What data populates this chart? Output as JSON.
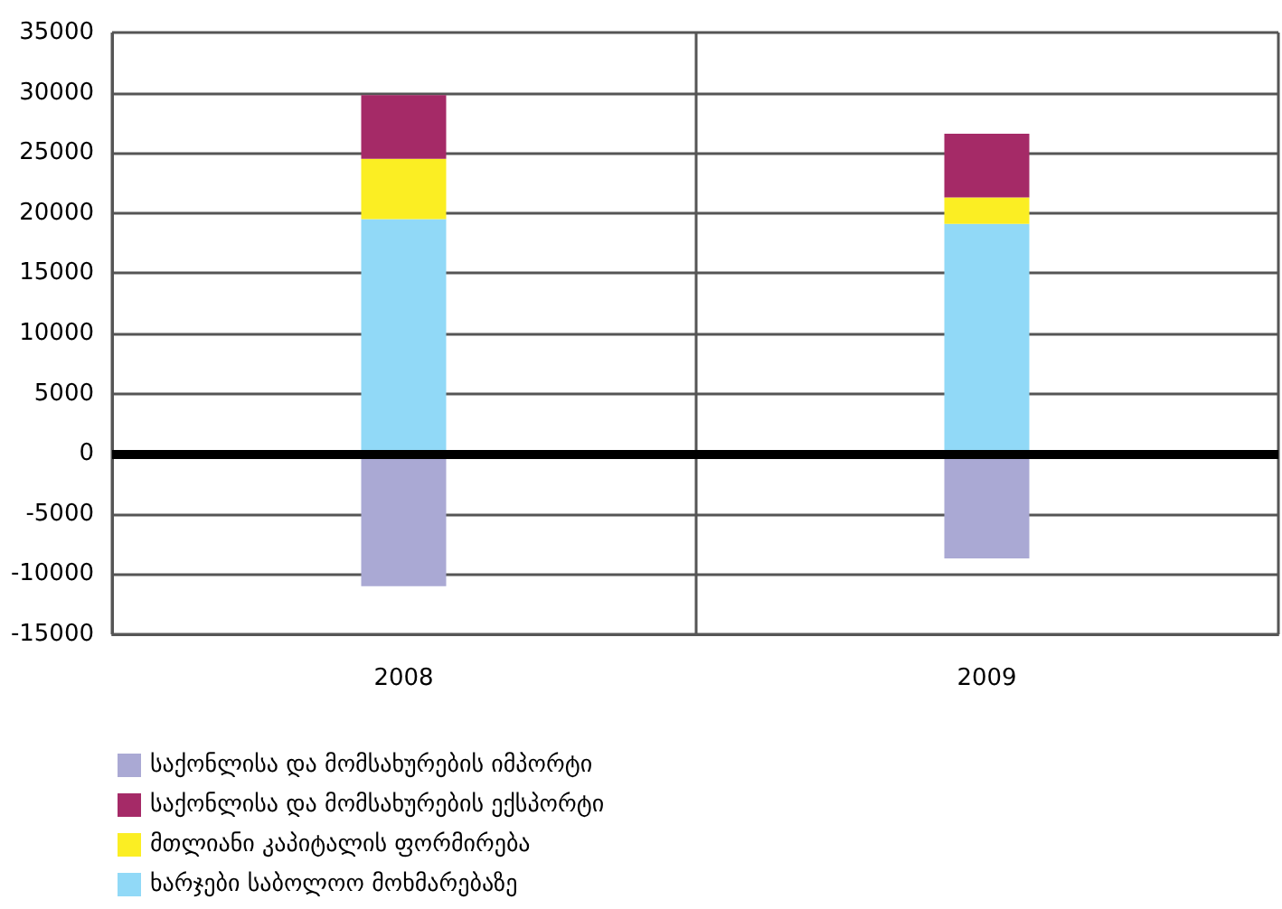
{
  "chart_data": {
    "type": "bar",
    "stacked": true,
    "categories": [
      "2008",
      "2009"
    ],
    "series": [
      {
        "name": "ხარჯები საბოლოო მოხმარებაზე",
        "color": "#91d9f7",
        "values": [
          19500,
          19100
        ]
      },
      {
        "name": "მთლიანი კაპიტალის ფორმირება",
        "color": "#fbee23",
        "values": [
          5000,
          2200
        ]
      },
      {
        "name": "საქონლისა და მომსახურების ექსპორტი",
        "color": "#a52a67",
        "values": [
          5300,
          5300
        ]
      },
      {
        "name": "საქონლისა და მომსახურების იმპორტი",
        "color": "#aaa9d4",
        "values": [
          -11000,
          -8700
        ]
      }
    ],
    "ylim": [
      -15000,
      35000
    ],
    "yticks": [
      -15000,
      -10000,
      -5000,
      0,
      5000,
      10000,
      15000,
      20000,
      25000,
      30000,
      35000
    ],
    "grid": true,
    "legend": "bottom left",
    "ref_lines": [
      {
        "axis": "y",
        "value": 0,
        "label": null,
        "color": "#000000"
      }
    ]
  }
}
